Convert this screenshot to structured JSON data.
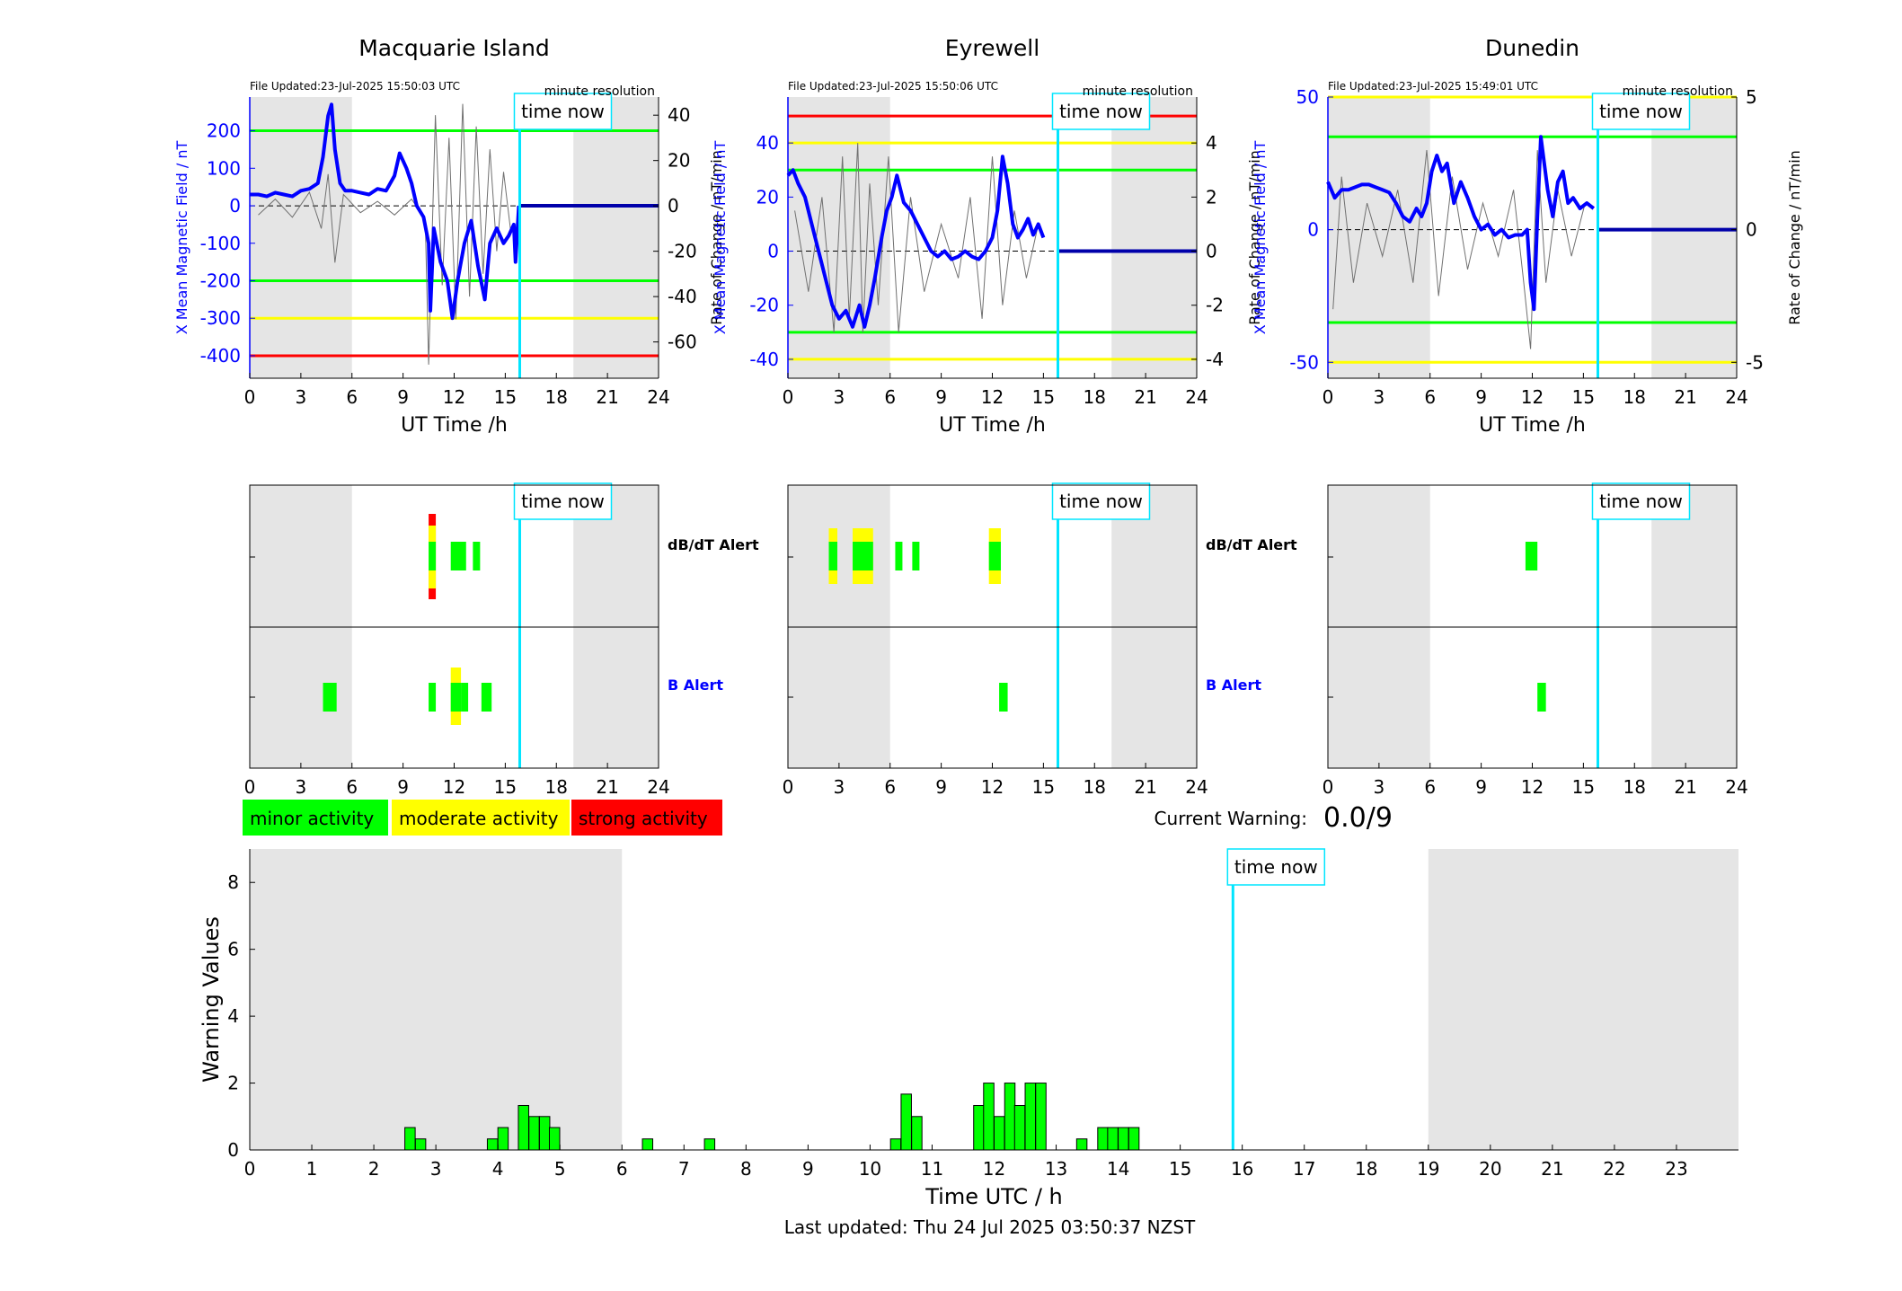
{
  "legend": {
    "minor": "minor activity",
    "moderate": "moderate activity",
    "strong": "strong activity"
  },
  "current_warning": {
    "label": "Current Warning:",
    "value": "0.0/9"
  },
  "footer": {
    "last_updated": "Last updated: Thu 24 Jul 2025 03:50:37 NZST"
  },
  "time_now_label": "time now",
  "time_now_hours": 15.85,
  "colors": {
    "minor": "#00ff00",
    "moderate": "#ffff00",
    "strong": "#ff0000",
    "now": "#00e5ff",
    "field": "#0000ff",
    "shade": "#e5e5e5"
  },
  "chart_data": [
    {
      "type": "line",
      "title": "Macquarie Island",
      "subtitle": "File Updated:23-Jul-2025 15:50:03 UTC",
      "resolution": "minute resolution",
      "xlabel": "UT Time /h",
      "ylabel": "X Mean Magnetic Field / nT",
      "y2label": "Rate of Change / nT/min",
      "xlim": [
        0,
        24
      ],
      "xticks": [
        "0",
        "3",
        "6",
        "9",
        "12",
        "15",
        "18",
        "21",
        "24"
      ],
      "ylim": [
        -460,
        290
      ],
      "yticks": [
        -400,
        -300,
        -200,
        -100,
        0,
        100,
        200
      ],
      "y2lim": [
        -76,
        48
      ],
      "y2ticks": [
        -60,
        -40,
        -20,
        0,
        20,
        40
      ],
      "thresholds": [
        {
          "value": 200,
          "color": "#00ff00"
        },
        {
          "value": -200,
          "color": "#00ff00"
        },
        {
          "value": -300,
          "color": "#ffff00"
        },
        {
          "value": -400,
          "color": "#ff0000"
        }
      ],
      "shaded_hours": [
        [
          0,
          6
        ],
        [
          19,
          24
        ]
      ],
      "series": [
        {
          "x": [
            0,
            0.5,
            1,
            1.5,
            2,
            2.5,
            3,
            3.5,
            4,
            4.3,
            4.6,
            4.8,
            5,
            5.3,
            5.6,
            6,
            6.5,
            7,
            7.5,
            8,
            8.5,
            8.8,
            9.2,
            9.5,
            9.8,
            10.2,
            10.5,
            10.6,
            10.8,
            11.2,
            11.6,
            11.9,
            12.2,
            12.6,
            13,
            13.4,
            13.8,
            14.1,
            14.5,
            14.9,
            15.2,
            15.5,
            15.6,
            15.8
          ],
          "y": [
            30,
            30,
            25,
            35,
            30,
            25,
            40,
            45,
            60,
            130,
            240,
            270,
            150,
            60,
            40,
            40,
            35,
            30,
            45,
            40,
            80,
            140,
            100,
            60,
            0,
            -30,
            -100,
            -280,
            -60,
            -150,
            -200,
            -300,
            -200,
            -100,
            -40,
            -160,
            -250,
            -100,
            -60,
            -100,
            -80,
            -50,
            -150,
            0
          ]
        }
      ],
      "rate_of_change": {
        "x": [
          0.5,
          1.5,
          2.5,
          3.5,
          4.2,
          4.6,
          5.0,
          5.5,
          6.5,
          7.5,
          8.5,
          9.5,
          10.3,
          10.5,
          10.9,
          11.3,
          11.7,
          12.1,
          12.5,
          12.9,
          13.3,
          13.7,
          14.1,
          14.5,
          14.9,
          15.3
        ],
        "y": [
          -4,
          3,
          -5,
          6,
          -10,
          14,
          -25,
          5,
          -3,
          2,
          -4,
          3,
          -6,
          -70,
          40,
          -35,
          30,
          -50,
          45,
          -40,
          35,
          -30,
          25,
          -20,
          15,
          -10
        ]
      }
    },
    {
      "type": "line",
      "title": "Eyrewell",
      "subtitle": "File Updated:23-Jul-2025 15:50:06 UTC",
      "resolution": "minute resolution",
      "xlabel": "UT Time /h",
      "ylabel": "X Mean Magnetic Field / nT",
      "y2label": "Rate of Change / nT/min",
      "xlim": [
        0,
        24
      ],
      "xticks": [
        "0",
        "3",
        "6",
        "9",
        "12",
        "15",
        "18",
        "21",
        "24"
      ],
      "ylim": [
        -47,
        57
      ],
      "yticks": [
        -40,
        -20,
        0,
        20,
        40
      ],
      "y2lim": [
        -4.7,
        5.7
      ],
      "y2ticks": [
        -4,
        -2,
        0,
        2,
        4
      ],
      "thresholds": [
        {
          "value": 50,
          "color": "#ff0000"
        },
        {
          "value": 40,
          "color": "#ffff00"
        },
        {
          "value": 30,
          "color": "#00ff00"
        },
        {
          "value": -30,
          "color": "#00ff00"
        },
        {
          "value": -40,
          "color": "#ffff00"
        }
      ],
      "shaded_hours": [
        [
          0,
          6
        ],
        [
          19,
          24
        ]
      ],
      "series": [
        {
          "x": [
            0,
            0.3,
            0.6,
            1,
            1.4,
            1.8,
            2.2,
            2.6,
            3,
            3.4,
            3.8,
            4.2,
            4.5,
            4.8,
            5.1,
            5.5,
            5.8,
            6.1,
            6.4,
            6.8,
            7.2,
            7.6,
            8,
            8.4,
            8.8,
            9.2,
            9.6,
            10,
            10.4,
            10.8,
            11.2,
            11.6,
            12,
            12.3,
            12.6,
            12.9,
            13.2,
            13.5,
            13.8,
            14.1,
            14.4,
            14.7,
            15
          ],
          "y": [
            28,
            30,
            25,
            20,
            10,
            0,
            -10,
            -20,
            -25,
            -22,
            -28,
            -20,
            -28,
            -20,
            -10,
            5,
            15,
            20,
            28,
            18,
            15,
            10,
            5,
            0,
            -2,
            0,
            -3,
            -2,
            0,
            -2,
            -3,
            0,
            5,
            15,
            35,
            25,
            10,
            5,
            8,
            12,
            6,
            10,
            5
          ]
        }
      ],
      "rate_of_change": {
        "x": [
          0.4,
          1.2,
          2,
          2.7,
          3.2,
          3.6,
          4.1,
          4.4,
          4.8,
          5.3,
          5.9,
          6.5,
          7.2,
          8,
          9,
          10,
          10.7,
          11.4,
          12,
          12.6,
          13.3,
          14,
          14.7
        ],
        "y": [
          1.5,
          -1.5,
          2,
          -3,
          3.5,
          -2.5,
          4,
          -3,
          2.5,
          -2,
          3.5,
          -3,
          2,
          -1.5,
          1,
          -1,
          2,
          -2.5,
          3.5,
          -2,
          1.5,
          -1,
          1
        ]
      }
    },
    {
      "type": "line",
      "title": "Dunedin",
      "subtitle": "File Updated:23-Jul-2025 15:49:01 UTC",
      "resolution": "minute resolution",
      "xlabel": "UT Time /h",
      "ylabel": "X Mean Magnetic Field / nT",
      "y2label": "Rate of Change / nT/min",
      "xlim": [
        0,
        24
      ],
      "xticks": [
        "0",
        "3",
        "6",
        "9",
        "12",
        "15",
        "18",
        "21",
        "24"
      ],
      "ylim": [
        -56,
        50
      ],
      "yticks": [
        -50,
        0,
        50
      ],
      "y2lim": [
        -5.6,
        5
      ],
      "y2ticks": [
        -5,
        0,
        5
      ],
      "thresholds": [
        {
          "value": 50,
          "color": "#ffff00"
        },
        {
          "value": 35,
          "color": "#00ff00"
        },
        {
          "value": -35,
          "color": "#00ff00"
        },
        {
          "value": -50,
          "color": "#ffff00"
        }
      ],
      "shaded_hours": [
        [
          0,
          6
        ],
        [
          19,
          24
        ]
      ],
      "series": [
        {
          "x": [
            0,
            0.4,
            0.8,
            1.2,
            1.6,
            2,
            2.4,
            2.8,
            3.2,
            3.6,
            4,
            4.4,
            4.8,
            5.2,
            5.5,
            5.8,
            6.1,
            6.4,
            6.7,
            7,
            7.4,
            7.8,
            8.2,
            8.6,
            9,
            9.4,
            9.8,
            10.2,
            10.6,
            11,
            11.4,
            11.7,
            11.9,
            12.1,
            12.3,
            12.5,
            12.7,
            12.9,
            13.2,
            13.5,
            13.8,
            14.1,
            14.4,
            14.8,
            15.2,
            15.6
          ],
          "y": [
            18,
            12,
            15,
            15,
            16,
            17,
            17,
            16,
            15,
            14,
            10,
            5,
            3,
            8,
            5,
            10,
            22,
            28,
            22,
            25,
            10,
            18,
            12,
            5,
            0,
            2,
            -2,
            0,
            -3,
            -2,
            -2,
            0,
            -20,
            -30,
            5,
            35,
            25,
            15,
            5,
            18,
            22,
            10,
            12,
            8,
            10,
            8
          ]
        }
      ],
      "rate_of_change": {
        "x": [
          0.3,
          0.8,
          1.5,
          2.3,
          3.2,
          4.1,
          5,
          5.8,
          6.5,
          7.3,
          8.2,
          9.1,
          10,
          10.9,
          11.5,
          11.9,
          12.3,
          12.8,
          13.5,
          14.3,
          15.1
        ],
        "y": [
          -3,
          2,
          -2,
          1,
          -1,
          1.5,
          -2,
          3,
          -2.5,
          2,
          -1.5,
          1,
          -1,
          1.5,
          -2,
          -4.5,
          3,
          -2,
          1.5,
          -1,
          1
        ]
      }
    },
    {
      "type": "bar",
      "title": "",
      "xlabel": "Time UTC / h",
      "ylabel": "Warning Values",
      "xlim": [
        0,
        24
      ],
      "xticks": [
        "0",
        "1",
        "2",
        "3",
        "4",
        "5",
        "6",
        "7",
        "8",
        "9",
        "10",
        "11",
        "12",
        "13",
        "14",
        "15",
        "16",
        "17",
        "18",
        "19",
        "20",
        "21",
        "22",
        "23"
      ],
      "ylim": [
        0,
        9
      ],
      "yticks": [
        0,
        2,
        4,
        6,
        8
      ],
      "shaded_hours": [
        [
          0,
          6
        ],
        [
          19,
          24
        ]
      ],
      "bin_width": 0.1667,
      "x": [
        2.5,
        2.67,
        3.83,
        4.0,
        4.33,
        4.5,
        4.67,
        4.83,
        6.33,
        7.33,
        10.33,
        10.5,
        10.67,
        11.67,
        11.83,
        12.0,
        12.17,
        12.33,
        12.5,
        12.67,
        13.33,
        13.67,
        13.83,
        14.0,
        14.17
      ],
      "values": [
        0.67,
        0.33,
        0.33,
        0.67,
        1.33,
        1.0,
        1.0,
        0.67,
        0.33,
        0.33,
        0.33,
        1.67,
        1.0,
        1.33,
        2.0,
        1.0,
        2.0,
        1.33,
        2.0,
        2.0,
        0.33,
        0.67,
        0.67,
        0.67,
        0.67
      ]
    }
  ],
  "alerts": [
    {
      "dbdt_label": "dB/dT Alert",
      "b_label": "B Alert",
      "xticks": [
        "0",
        "3",
        "6",
        "9",
        "12",
        "15",
        "18",
        "21",
        "24"
      ],
      "dbdt": [
        {
          "x": 10.5,
          "w": 0.4,
          "level": "strong"
        },
        {
          "x": 11.8,
          "w": 0.9,
          "level": "minor"
        },
        {
          "x": 13.1,
          "w": 0.3,
          "level": "minor"
        }
      ],
      "b": [
        {
          "x": 4.3,
          "w": 0.8,
          "level": "minor"
        },
        {
          "x": 10.5,
          "w": 0.4,
          "level": "minor"
        },
        {
          "x": 11.8,
          "w": 0.6,
          "level": "moderate"
        },
        {
          "x": 12.4,
          "w": 0.4,
          "level": "minor"
        },
        {
          "x": 13.6,
          "w": 0.6,
          "level": "minor"
        }
      ]
    },
    {
      "dbdt_label": "dB/dT Alert",
      "b_label": "B Alert",
      "xticks": [
        "0",
        "3",
        "6",
        "9",
        "12",
        "15",
        "18",
        "21",
        "24"
      ],
      "dbdt": [
        {
          "x": 2.4,
          "w": 0.5,
          "level": "moderate"
        },
        {
          "x": 3.8,
          "w": 1.2,
          "level": "moderate"
        },
        {
          "x": 6.3,
          "w": 0.4,
          "level": "minor"
        },
        {
          "x": 7.3,
          "w": 0.3,
          "level": "minor"
        },
        {
          "x": 11.8,
          "w": 0.7,
          "level": "moderate"
        }
      ],
      "b": [
        {
          "x": 12.4,
          "w": 0.5,
          "level": "minor"
        }
      ]
    },
    {
      "dbdt_label": "",
      "b_label": "",
      "xticks": [
        "0",
        "3",
        "6",
        "9",
        "12",
        "15",
        "18",
        "21",
        "24"
      ],
      "dbdt": [
        {
          "x": 11.6,
          "w": 0.7,
          "level": "minor"
        }
      ],
      "b": [
        {
          "x": 12.3,
          "w": 0.5,
          "level": "minor"
        }
      ]
    }
  ]
}
